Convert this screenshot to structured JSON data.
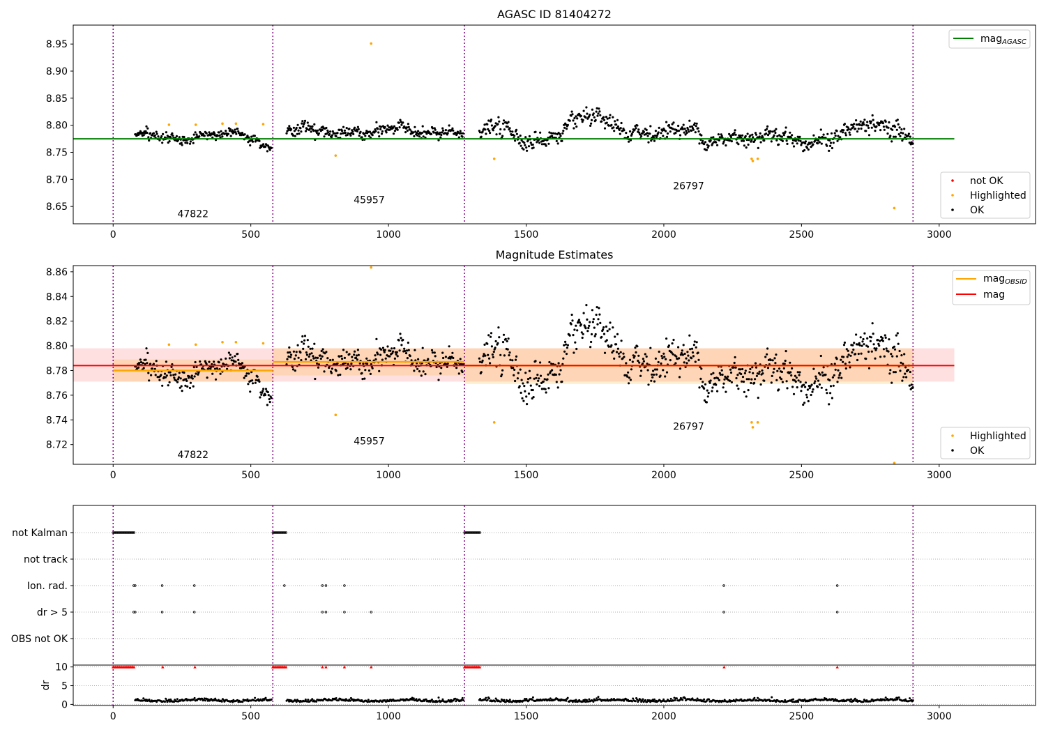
{
  "chart_data": [
    {
      "type": "scatter",
      "title": "AGASC ID 81404272",
      "xlim": [
        -145,
        3350
      ],
      "ylim": [
        8.618,
        8.985
      ],
      "xticks": [
        0,
        500,
        1000,
        1500,
        2000,
        2500,
        3000
      ],
      "yticks": [
        8.65,
        8.7,
        8.75,
        8.8,
        8.85,
        8.9,
        8.95
      ],
      "ytick_labels": [
        "8.65",
        "8.70",
        "8.75",
        "8.80",
        "8.85",
        "8.90",
        "8.95"
      ],
      "obs_boundaries": [
        0,
        580,
        1276,
        2905
      ],
      "obsids": [
        {
          "label": "47822",
          "x": 290,
          "y": 8.63
        },
        {
          "label": "45957",
          "x": 930,
          "y": 8.656
        },
        {
          "label": "26797",
          "x": 2090,
          "y": 8.682
        }
      ],
      "mag_agasc": {
        "value": 8.775,
        "x": [
          -145,
          3055
        ],
        "color": "#008000"
      },
      "ok_segments": [
        {
          "x": [
            80,
            575
          ],
          "mean": 8.779,
          "sd": 0.007
        },
        {
          "x": [
            630,
            1272
          ],
          "mean": 8.787,
          "sd": 0.009
        },
        {
          "x": [
            1330,
            2905
          ],
          "mean": 8.784,
          "sd": 0.013
        }
      ],
      "highlighted": [
        {
          "x": 203,
          "y": 8.801
        },
        {
          "x": 300,
          "y": 8.801
        },
        {
          "x": 397,
          "y": 8.803
        },
        {
          "x": 446,
          "y": 8.803
        },
        {
          "x": 545,
          "y": 8.802
        },
        {
          "x": 808,
          "y": 8.744
        },
        {
          "x": 937,
          "y": 8.951
        },
        {
          "x": 1384,
          "y": 8.738
        },
        {
          "x": 2319,
          "y": 8.738
        },
        {
          "x": 2323,
          "y": 8.734
        },
        {
          "x": 2341,
          "y": 8.738
        },
        {
          "x": 2837,
          "y": 8.647
        }
      ],
      "legend_upper": [
        {
          "label": "mag",
          "sub": "AGASC",
          "color": "#008000"
        }
      ],
      "legend_lower": [
        {
          "label": "not OK",
          "color": "#ff0000"
        },
        {
          "label": "Highlighted",
          "color": "#ffa500"
        },
        {
          "label": "OK",
          "color": "#000000"
        }
      ]
    },
    {
      "type": "scatter",
      "title": "Magnitude Estimates",
      "xlim": [
        -145,
        3350
      ],
      "ylim": [
        8.704,
        8.865
      ],
      "xticks": [
        0,
        500,
        1000,
        1500,
        2000,
        2500,
        3000
      ],
      "yticks": [
        8.72,
        8.74,
        8.76,
        8.78,
        8.8,
        8.82,
        8.84,
        8.86
      ],
      "ytick_labels": [
        "8.72",
        "8.74",
        "8.76",
        "8.78",
        "8.80",
        "8.82",
        "8.84",
        "8.86"
      ],
      "obs_boundaries": [
        0,
        580,
        1276,
        2905
      ],
      "obsids": [
        {
          "label": "47822",
          "x": 290,
          "y": 8.709
        },
        {
          "label": "45957",
          "x": 930,
          "y": 8.72
        },
        {
          "label": "26797",
          "x": 2090,
          "y": 8.732
        }
      ],
      "mag": {
        "value": 8.784,
        "low": 8.771,
        "high": 8.798,
        "x": [
          -145,
          3055
        ],
        "color": "#ff0000"
      },
      "mag_obsid": [
        {
          "x": [
            0,
            580
          ],
          "value": 8.78,
          "low": 8.771,
          "high": 8.789
        },
        {
          "x": [
            580,
            1276
          ],
          "value": 8.787,
          "low": 8.776,
          "high": 8.798
        },
        {
          "x": [
            1276,
            2905
          ],
          "value": 8.784,
          "low": 8.769,
          "high": 8.798
        }
      ],
      "highlighted": [
        {
          "x": 203,
          "y": 8.801
        },
        {
          "x": 300,
          "y": 8.801
        },
        {
          "x": 397,
          "y": 8.803
        },
        {
          "x": 446,
          "y": 8.803
        },
        {
          "x": 545,
          "y": 8.802
        },
        {
          "x": 808,
          "y": 8.744
        },
        {
          "x": 937,
          "y": 8.8635
        },
        {
          "x": 1384,
          "y": 8.738
        },
        {
          "x": 2319,
          "y": 8.738
        },
        {
          "x": 2323,
          "y": 8.734
        },
        {
          "x": 2341,
          "y": 8.738
        },
        {
          "x": 2837,
          "y": 8.705
        }
      ],
      "legend_upper": [
        {
          "label": "mag",
          "sub": "OBSID",
          "color": "#ffa500"
        },
        {
          "label": "mag",
          "sub": "",
          "color": "#ff0000"
        }
      ],
      "legend_lower": [
        {
          "label": "Highlighted",
          "color": "#ffa500"
        },
        {
          "label": "OK",
          "color": "#000000"
        }
      ]
    },
    {
      "type": "scatter",
      "title": "",
      "xlim": [
        -145,
        3350
      ],
      "xticks": [
        0,
        500,
        1000,
        1500,
        2000,
        2500,
        3000
      ],
      "categories": [
        "not Kalman",
        "not track",
        "Ion. rad.",
        "dr > 5",
        "OBS not OK"
      ],
      "obs_boundaries": [
        0,
        580,
        1276,
        2905
      ],
      "flags": {
        "not Kalman": [
          [
            0,
            78
          ],
          [
            580,
            630
          ],
          [
            1276,
            1335
          ]
        ],
        "not track": [],
        "Ion. rad.": [
          75,
          80,
          178,
          295,
          622,
          760,
          773,
          840,
          2218,
          2630
        ],
        "dr > 5": [
          75,
          80,
          178,
          295,
          760,
          773,
          840,
          937,
          2218,
          2630
        ]
      },
      "flag_highlights": [
        {
          "x": 0,
          "y": 10
        },
        {
          "x": 580,
          "y": 10
        },
        {
          "x": 1276,
          "y": 10
        },
        {
          "x": 180,
          "y": 10
        },
        {
          "x": 297,
          "y": 10
        },
        {
          "x": 760,
          "y": 10
        },
        {
          "x": 773,
          "y": 10
        },
        {
          "x": 840,
          "y": 10
        },
        {
          "x": 937,
          "y": 10
        },
        {
          "x": 2219,
          "y": 10
        },
        {
          "x": 2630,
          "y": 10
        }
      ],
      "dr_ylabel": "dr",
      "dr_ylim": [
        -0.3,
        10.5
      ],
      "dr_yticks": [
        0,
        5,
        10
      ],
      "dr_ytick_labels": [
        "0",
        "5",
        "10"
      ],
      "dr_segments": [
        [
          80,
          575
        ],
        [
          630,
          1272
        ],
        [
          1330,
          2905
        ]
      ],
      "dr_typical": 0.8
    }
  ],
  "colors": {
    "ok": "#000000",
    "highlighted": "#ffa500",
    "not_ok": "#ff0000",
    "boundary": "#800080",
    "grid": "#b0b0b0"
  }
}
